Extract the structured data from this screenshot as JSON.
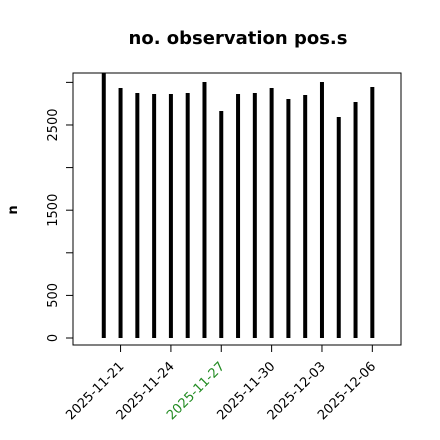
{
  "chart_data": {
    "type": "bar_h_lines",
    "title": "no. observation pos.s",
    "ylabel": "n",
    "x": [
      "2025-11-20",
      "2025-11-21",
      "2025-11-22",
      "2025-11-23",
      "2025-11-24",
      "2025-11-25",
      "2025-11-26",
      "2025-11-27",
      "2025-11-28",
      "2025-11-29",
      "2025-11-30",
      "2025-12-01",
      "2025-12-02",
      "2025-12-03",
      "2025-12-04",
      "2025-12-05",
      "2025-12-06"
    ],
    "values": [
      3110,
      2934,
      2876,
      2864,
      2864,
      2876,
      3005,
      2664,
      2864,
      2876,
      2934,
      2805,
      2852,
      3005,
      2594,
      2770,
      2946
    ],
    "color": "#000000",
    "xlim": [
      "2025-11-18T04:00Z",
      "2025-12-07T17:00Z"
    ],
    "xticks": [
      "2025-11-21",
      "2025-11-24",
      "2025-11-27",
      "2025-11-30",
      "2025-12-03",
      "2025-12-06"
    ],
    "xtick_label_colors": [
      "#000000",
      "#000000",
      "#228b22",
      "#000000",
      "#000000",
      "#000000"
    ],
    "ylim": [
      -82,
      3110
    ],
    "yticks": [
      0,
      500,
      1500,
      2500
    ],
    "yticks_unlabeled": [
      1000,
      2000,
      3000
    ]
  }
}
